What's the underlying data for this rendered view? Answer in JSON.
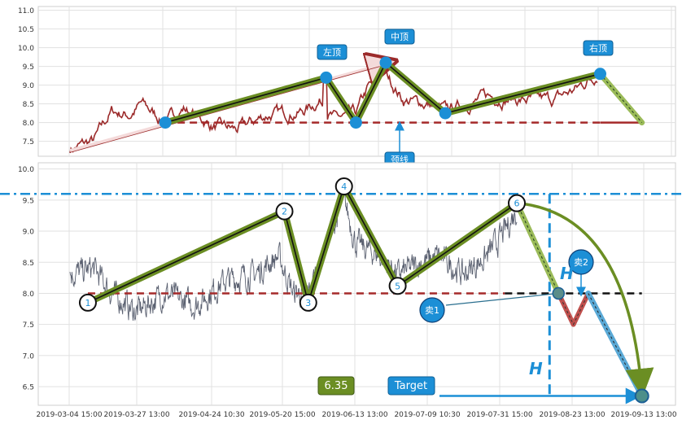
{
  "colors": {
    "price_upper": "#9b2a2a",
    "price_lower": "#5a6070",
    "neckline": "#a52a2a",
    "trend_green": "#6b8e23",
    "trend_light": "#9bbb59",
    "marker_blue": "#1c8fd6",
    "cyan_dash": "#1c8fd6",
    "badge_green": "#6b8e23",
    "sell_line": "#5aa9d6",
    "sell_red": "#c0504d"
  },
  "chart_data": [
    {
      "type": "line",
      "panel": "upper",
      "ylim": [
        7.1,
        11.1
      ],
      "yticks": [
        "7.5",
        "8.0",
        "8.5",
        "9.0",
        "9.5",
        "10.0",
        "10.5",
        "11.0"
      ],
      "neckline": 8.0,
      "pattern_points": [
        {
          "t": 0.0,
          "v": 7.25
        },
        {
          "t": 0.16,
          "v": 8.0
        },
        {
          "t": 0.43,
          "v": 9.2
        },
        {
          "t": 0.48,
          "v": 8.0
        },
        {
          "t": 0.53,
          "v": 9.6
        },
        {
          "t": 0.63,
          "v": 8.25
        },
        {
          "t": 0.89,
          "v": 9.3
        },
        {
          "t": 0.96,
          "v": 8.0
        }
      ],
      "annotations": [
        {
          "id": "left-top",
          "label": "左顶",
          "t": 0.43,
          "v": 9.2
        },
        {
          "id": "middle-top",
          "label": "中顶",
          "t": 0.53,
          "v": 9.6
        },
        {
          "id": "right-top",
          "label": "右顶",
          "t": 0.89,
          "v": 9.3
        },
        {
          "id": "neckline",
          "label": "颈线",
          "t": 0.53,
          "v": 8.0
        }
      ]
    },
    {
      "type": "line",
      "panel": "lower",
      "ylim": [
        6.2,
        10.1
      ],
      "yticks": [
        "6.5",
        "7.0",
        "7.5",
        "8.0",
        "8.5",
        "9.0",
        "9.5",
        "10.0"
      ],
      "xticks": [
        "2019-03-04 15:00",
        "2019-03-27 13:00",
        "2019-04-24 10:30",
        "2019-05-20 15:00",
        "2019-06-13 13:00",
        "2019-07-09 10:30",
        "2019-07-31 15:00",
        "2019-08-23 13:00",
        "2019-09-13 13:00"
      ],
      "neckline": 8.0,
      "resistance": 9.6,
      "target": 6.35,
      "numbered_points": [
        {
          "label": "1",
          "t": 0.03,
          "v": 7.85
        },
        {
          "label": "2",
          "t": 0.36,
          "v": 9.32
        },
        {
          "label": "3",
          "t": 0.4,
          "v": 7.85
        },
        {
          "label": "4",
          "t": 0.46,
          "v": 9.72
        },
        {
          "label": "5",
          "t": 0.55,
          "v": 8.12
        },
        {
          "label": "6",
          "t": 0.75,
          "v": 9.45
        }
      ],
      "sell_points": [
        {
          "label": "卖1",
          "t": 0.82,
          "v": 8.0
        },
        {
          "label": "卖2",
          "t": 0.87,
          "v": 8.0
        }
      ],
      "height_label": "H",
      "target_label": "Target",
      "target_value_label": "6.35"
    }
  ]
}
